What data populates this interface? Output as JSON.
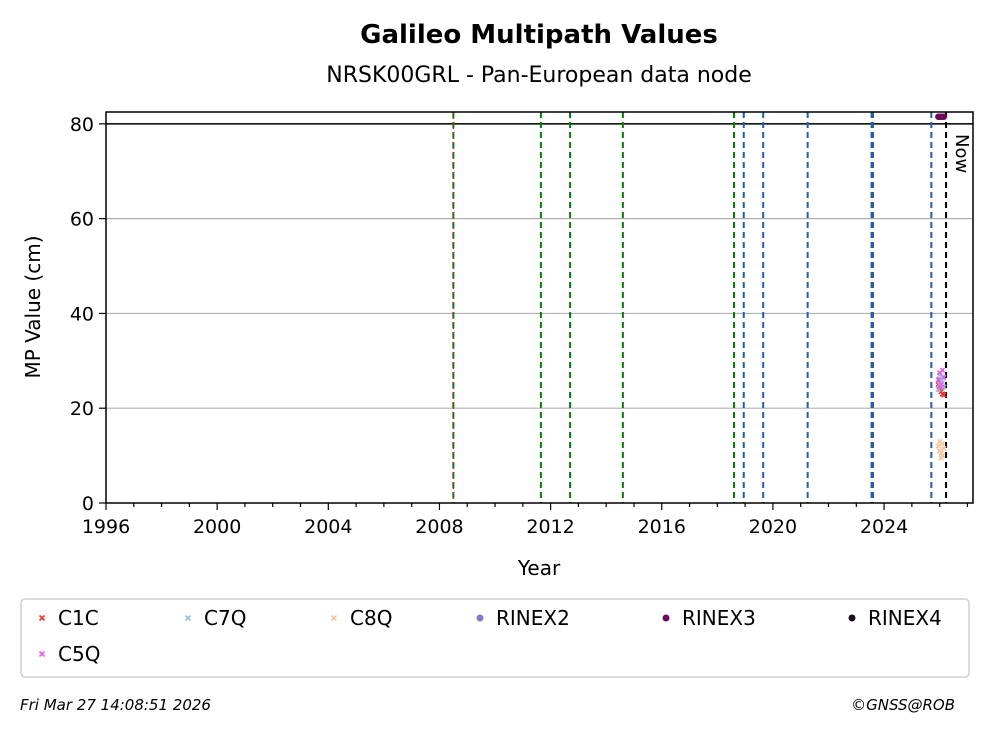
{
  "chart_data": {
    "type": "scatter",
    "title": "Galileo Multipath Values",
    "subtitle": "NRSK00GRL - Pan-European data node",
    "xlabel": "Year",
    "ylabel": "MP Value (cm)",
    "xlim": [
      1996,
      2027.2
    ],
    "ylim": [
      0,
      82.5
    ],
    "x_ticks": [
      1996,
      2000,
      2004,
      2008,
      2012,
      2016,
      2020,
      2024
    ],
    "x_tick_labels": [
      "1996",
      "2000",
      "2004",
      "2008",
      "2012",
      "2016",
      "2020",
      "2024"
    ],
    "y_ticks": [
      0,
      20,
      40,
      60,
      80
    ],
    "y_tick_labels": [
      "0",
      "20",
      "40",
      "60",
      "80"
    ],
    "grid": "horizontal",
    "reference_line_y": 80,
    "now_label": "Now",
    "now_x": 2026.23,
    "vlines_green": [
      2008.5,
      2011.65,
      2012.7,
      2014.6,
      2018.6
    ],
    "vlines_blue": [
      2018.95,
      2019.65,
      2021.25,
      2023.55,
      2023.6,
      2025.7
    ],
    "vlines_red": [
      2008.5
    ],
    "legend_position": "bottom",
    "series": [
      {
        "name": "C1C",
        "marker": "x",
        "color": "#e8392c",
        "points": [
          [
            2025.95,
            25
          ],
          [
            2026.0,
            24
          ],
          [
            2026.05,
            23.5
          ],
          [
            2026.1,
            23
          ],
          [
            2026.15,
            22.8
          ],
          [
            2026.0,
            26
          ],
          [
            2026.1,
            24.5
          ]
        ]
      },
      {
        "name": "C7Q",
        "marker": "x",
        "color": "#93c3ea",
        "points": [
          [
            2025.95,
            24
          ],
          [
            2026.0,
            25
          ],
          [
            2026.05,
            26
          ],
          [
            2026.1,
            25.5
          ],
          [
            2026.15,
            24.5
          ],
          [
            2026.0,
            27
          ],
          [
            2026.1,
            26.5
          ]
        ]
      },
      {
        "name": "C8Q",
        "marker": "x",
        "color": "#f5c6a0",
        "points": [
          [
            2025.95,
            12
          ],
          [
            2026.0,
            11
          ],
          [
            2026.05,
            10.5
          ],
          [
            2026.1,
            12.5
          ],
          [
            2026.15,
            11.5
          ],
          [
            2026.0,
            13
          ],
          [
            2026.1,
            10
          ],
          [
            2026.05,
            9.5
          ]
        ]
      },
      {
        "name": "RINEX2",
        "marker": "o",
        "color": "#8878c3",
        "points": []
      },
      {
        "name": "RINEX3",
        "marker": "o",
        "color": "#6a0a5a",
        "points": [
          [
            2025.95,
            81.5
          ],
          [
            2026.0,
            81.5
          ],
          [
            2026.05,
            81.5
          ],
          [
            2026.1,
            81.5
          ],
          [
            2026.15,
            81.5
          ]
        ]
      },
      {
        "name": "RINEX4",
        "marker": "o",
        "color": "#1a0a1a",
        "points": []
      },
      {
        "name": "C5Q",
        "marker": "x",
        "color": "#e85ce8",
        "points": [
          [
            2025.95,
            26
          ],
          [
            2026.0,
            27.5
          ],
          [
            2026.05,
            25
          ],
          [
            2026.1,
            28
          ],
          [
            2026.15,
            26.5
          ],
          [
            2026.0,
            24.5
          ]
        ]
      }
    ]
  },
  "footer": {
    "timestamp": "Fri Mar 27 14:08:51 2026",
    "credit": "©GNSS@ROB"
  }
}
